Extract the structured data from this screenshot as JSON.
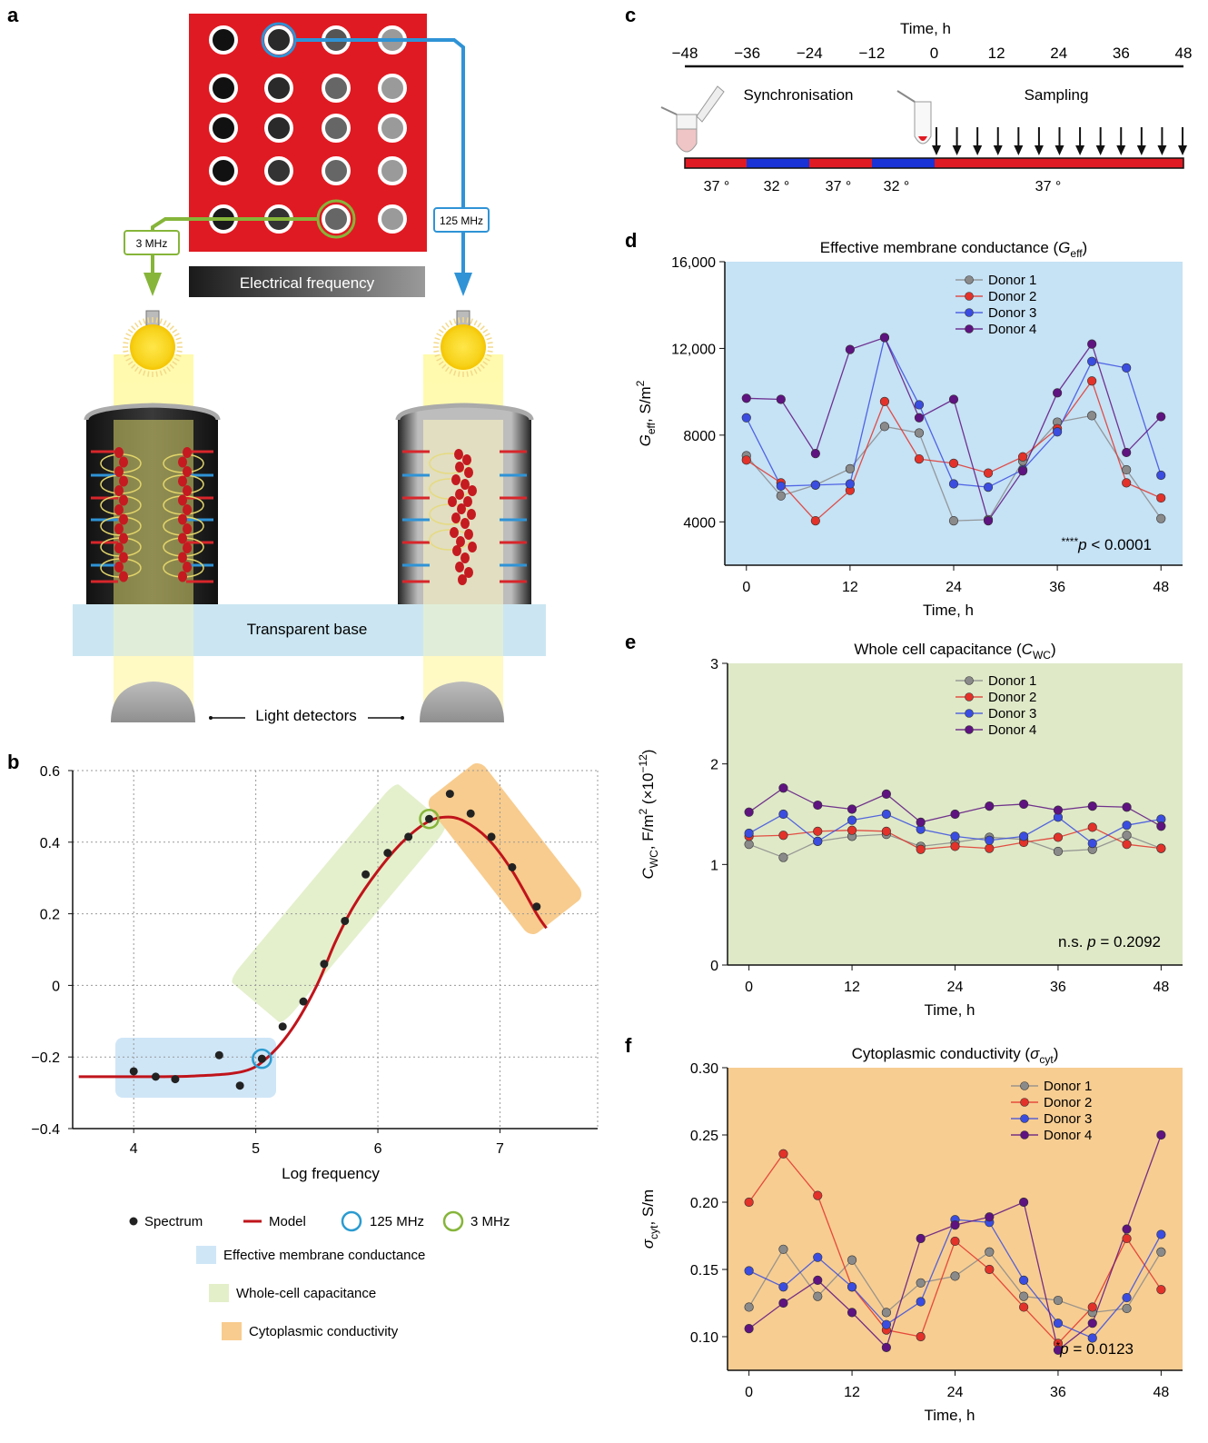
{
  "panel_letters": {
    "a": "a",
    "b": "b",
    "c": "c",
    "d": "d",
    "e": "e",
    "f": "f"
  },
  "panel_a": {
    "freq_left": "3 MHz",
    "freq_right": "125 MHz",
    "frequency_bar": "Electrical frequency",
    "base": "Transparent base",
    "detectors": "Light detectors",
    "colors": {
      "plate": "#e01a22",
      "blue_path": "#2f93d6",
      "green_path": "#86b53a",
      "base": "#cbe6f2"
    }
  },
  "panel_c": {
    "axis_title": "Time, h",
    "ticks": [
      "−48",
      "−36",
      "−24",
      "−12",
      "0",
      "12",
      "24",
      "36",
      "48"
    ],
    "sync_label": "Synchronisation",
    "sampling_label": "Sampling",
    "temps": [
      "37 °",
      "32 °",
      "37 °",
      "32 °",
      "37 °"
    ],
    "colors": {
      "warm": "#e01a22",
      "cold": "#1a33d6"
    }
  },
  "legend_b": {
    "spectrum": "Spectrum",
    "model": "Model",
    "c125": "125 MHz",
    "c3": "3 MHz",
    "region1": "Effective membrane conductance",
    "region2": "Whole-cell capacitance",
    "region3": "Cytoplasmic conductivity"
  },
  "chart_data": [
    {
      "panel": "b",
      "type": "scatter",
      "xlabel": "Log frequency",
      "xticks": [
        "4",
        "5",
        "6",
        "7"
      ],
      "yticks": [
        "0.6",
        "0.4",
        "0.2",
        "0",
        "−0.2",
        "−0.4"
      ],
      "xlim": [
        3.5,
        7.8
      ],
      "ylim": [
        -0.4,
        0.6
      ],
      "grid": true,
      "spectrum": {
        "x": [
          4.0,
          4.18,
          4.34,
          4.7,
          4.87,
          5.05,
          5.22,
          5.39,
          5.56,
          5.73,
          5.9,
          6.08,
          6.25,
          6.42,
          6.59,
          6.76,
          6.93,
          7.1,
          7.3
        ],
        "y": [
          -0.24,
          -0.255,
          -0.262,
          -0.195,
          -0.28,
          -0.205,
          -0.115,
          -0.045,
          0.06,
          0.18,
          0.31,
          0.37,
          0.415,
          0.465,
          0.535,
          0.48,
          0.415,
          0.33,
          0.22
        ]
      },
      "model": {
        "x": [
          3.55,
          4.0,
          4.5,
          4.9,
          5.1,
          5.3,
          5.5,
          5.65,
          5.8,
          6.0,
          6.2,
          6.4,
          6.55,
          6.7,
          6.9,
          7.1,
          7.3,
          7.38
        ],
        "y": [
          -0.255,
          -0.255,
          -0.253,
          -0.24,
          -0.2,
          -0.12,
          0.0,
          0.12,
          0.22,
          0.32,
          0.4,
          0.455,
          0.47,
          0.46,
          0.41,
          0.32,
          0.2,
          0.16
        ]
      },
      "markers": {
        "125 MHz": [
          5.05,
          -0.205
        ],
        "3 MHz": [
          6.42,
          0.465
        ]
      },
      "regions": {
        "conductance": "#cfe6f7",
        "capacitance": "#e3efc9",
        "cytoplasmic": "#f8cc8e"
      }
    },
    {
      "panel": "d",
      "type": "line",
      "title": "Effective membrane conductance (G",
      "title_sub": "eff",
      "ylabel": "G",
      "ylabel_sub": "eff",
      "ylabel_rest": ", S/m",
      "ylabel_sup": "2",
      "xlabel": "Time, h",
      "xticks": [
        "0",
        "12",
        "24",
        "36",
        "48"
      ],
      "yticks": [
        "16,000",
        "12,000",
        "8000",
        "4000"
      ],
      "x": [
        0,
        4,
        8,
        12,
        16,
        20,
        24,
        28,
        32,
        36,
        40,
        44,
        48
      ],
      "xlim": [
        -2.5,
        50.5
      ],
      "ylim": [
        2000,
        16000
      ],
      "background": "#c6e2f5",
      "annotation": "****",
      "annotation_p": "p",
      "annotation_rest": " < 0.0001",
      "series": [
        {
          "name": "Donor 1",
          "color": "#8a8a8a",
          "values": [
            7050,
            5200,
            5700,
            6450,
            8400,
            8100,
            4050,
            4100,
            6800,
            8600,
            8900,
            6400,
            4150
          ]
        },
        {
          "name": "Donor 2",
          "color": "#e2322a",
          "values": [
            6850,
            5800,
            4050,
            5450,
            9550,
            6900,
            6700,
            6250,
            7000,
            8300,
            10500,
            5800,
            5100
          ]
        },
        {
          "name": "Donor 3",
          "color": "#3a4de0",
          "values": [
            8800,
            5650,
            5700,
            5750,
            12500,
            9400,
            5750,
            5600,
            6400,
            8150,
            11400,
            11100,
            6150
          ]
        },
        {
          "name": "Donor 4",
          "color": "#5e1380",
          "values": [
            9700,
            9650,
            7150,
            11950,
            12500,
            8800,
            9650,
            4050,
            6350,
            9950,
            12200,
            7200,
            8850
          ]
        }
      ]
    },
    {
      "panel": "e",
      "type": "line",
      "title": "Whole cell capacitance (C",
      "title_sub": "WC",
      "ylabel": "C",
      "ylabel_sub": "WC",
      "ylabel_rest": ", F/m",
      "ylabel_sup": "2",
      "ylabel_tail": " (×10",
      "ylabel_tail_sup": "−12",
      "ylabel_tail_end": ")",
      "xlabel": "Time, h",
      "xticks": [
        "0",
        "12",
        "24",
        "36",
        "48"
      ],
      "yticks": [
        "3",
        "2",
        "1",
        "0"
      ],
      "x": [
        0,
        4,
        8,
        12,
        16,
        20,
        24,
        28,
        32,
        36,
        40,
        44,
        48
      ],
      "xlim": [
        -2.5,
        50.5
      ],
      "ylim": [
        0,
        3
      ],
      "background": "#dfe9c8",
      "annotation": "n.s. ",
      "annotation_p": "p",
      "annotation_rest": " = 0.2092",
      "series": [
        {
          "name": "Donor 1",
          "color": "#8a8a8a",
          "values": [
            1.2,
            1.07,
            1.23,
            1.28,
            1.3,
            1.18,
            1.22,
            1.27,
            1.25,
            1.13,
            1.15,
            1.29,
            1.16
          ]
        },
        {
          "name": "Donor 2",
          "color": "#e2322a",
          "values": [
            1.28,
            1.29,
            1.33,
            1.34,
            1.33,
            1.15,
            1.18,
            1.16,
            1.22,
            1.27,
            1.37,
            1.2,
            1.16
          ]
        },
        {
          "name": "Donor 3",
          "color": "#3a4de0",
          "values": [
            1.31,
            1.5,
            1.23,
            1.44,
            1.5,
            1.35,
            1.28,
            1.24,
            1.28,
            1.47,
            1.21,
            1.39,
            1.45
          ]
        },
        {
          "name": "Donor 4",
          "color": "#5e1380",
          "values": [
            1.52,
            1.76,
            1.59,
            1.55,
            1.7,
            1.42,
            1.5,
            1.58,
            1.6,
            1.54,
            1.58,
            1.57,
            1.38
          ]
        }
      ]
    },
    {
      "panel": "f",
      "type": "line",
      "title": "Cytoplasmic conductivity (",
      "title_sigma": "σ",
      "title_sub": "cyt",
      "title_end": ")",
      "ylabel": "σ",
      "ylabel_sub": "cyt",
      "ylabel_rest": ", S/m",
      "xlabel": "Time, h",
      "xticks": [
        "0",
        "12",
        "24",
        "36",
        "48"
      ],
      "yticks": [
        "0.30",
        "0.25",
        "0.20",
        "0.15",
        "0.10"
      ],
      "x": [
        0,
        4,
        8,
        12,
        16,
        20,
        24,
        28,
        32,
        36,
        40,
        44,
        48
      ],
      "xlim": [
        -2.5,
        50.5
      ],
      "ylim": [
        0.075,
        0.3
      ],
      "background": "#f7cd92",
      "annotation": "*",
      "annotation_p": "p",
      "annotation_rest": " = 0.0123",
      "series": [
        {
          "name": "Donor 1",
          "color": "#8a8a8a",
          "values": [
            0.122,
            0.165,
            0.13,
            0.157,
            0.118,
            0.14,
            0.145,
            0.163,
            0.13,
            0.127,
            0.118,
            0.121,
            0.163
          ]
        },
        {
          "name": "Donor 2",
          "color": "#e2322a",
          "values": [
            0.2,
            0.236,
            0.205,
            0.137,
            0.105,
            0.1,
            0.171,
            0.15,
            0.122,
            0.095,
            0.122,
            0.173,
            0.135
          ]
        },
        {
          "name": "Donor 3",
          "color": "#3a4de0",
          "values": [
            0.149,
            0.137,
            0.159,
            0.137,
            0.109,
            0.126,
            0.187,
            0.185,
            0.142,
            0.11,
            0.099,
            0.129,
            0.176
          ]
        },
        {
          "name": "Donor 4",
          "color": "#5e1380",
          "values": [
            0.106,
            0.125,
            0.142,
            0.118,
            0.092,
            0.173,
            0.183,
            0.189,
            0.2,
            0.09,
            0.11,
            0.18,
            0.25
          ]
        }
      ]
    }
  ]
}
